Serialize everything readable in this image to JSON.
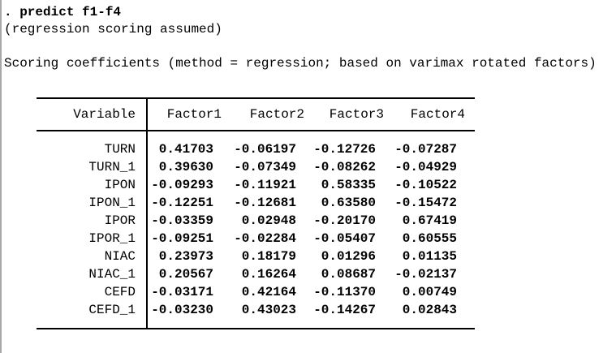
{
  "console": {
    "command": ". predict f1-f4",
    "note": "(regression scoring assumed)",
    "table_title": "Scoring coefficients (method = regression; based on varimax rotated factors)"
  },
  "table": {
    "col_headers": [
      "Variable",
      "Factor1",
      "Factor2",
      "Factor3",
      "Factor4"
    ],
    "rows": [
      {
        "variable": "TURN",
        "values": [
          "0.41703",
          "-0.06197",
          "-0.12726",
          "-0.07287"
        ]
      },
      {
        "variable": "TURN_1",
        "values": [
          "0.39630",
          "-0.07349",
          "-0.08262",
          "-0.04929"
        ]
      },
      {
        "variable": "IPON",
        "values": [
          "-0.09293",
          "-0.11921",
          "0.58335",
          "-0.10522"
        ]
      },
      {
        "variable": "IPON_1",
        "values": [
          "-0.12251",
          "-0.12681",
          "0.63580",
          "-0.15472"
        ]
      },
      {
        "variable": "IPOR",
        "values": [
          "-0.03359",
          "0.02948",
          "-0.20170",
          "0.67419"
        ]
      },
      {
        "variable": "IPOR_1",
        "values": [
          "-0.09251",
          "-0.02284",
          "-0.05407",
          "0.60555"
        ]
      },
      {
        "variable": "NIAC",
        "values": [
          "0.23973",
          "0.18179",
          "0.01296",
          "0.01135"
        ]
      },
      {
        "variable": "NIAC_1",
        "values": [
          "0.20567",
          "0.16264",
          "0.08687",
          "-0.02137"
        ]
      },
      {
        "variable": "CEFD",
        "values": [
          "-0.03171",
          "0.42164",
          "-0.11370",
          "0.00749"
        ]
      },
      {
        "variable": "CEFD_1",
        "values": [
          "-0.03230",
          "0.43023",
          "-0.14267",
          "0.02843"
        ]
      }
    ]
  },
  "colors": {
    "background": "#ffffff",
    "text": "#000000",
    "table_rule": "#000000",
    "window_border": "#a8a8a8"
  }
}
